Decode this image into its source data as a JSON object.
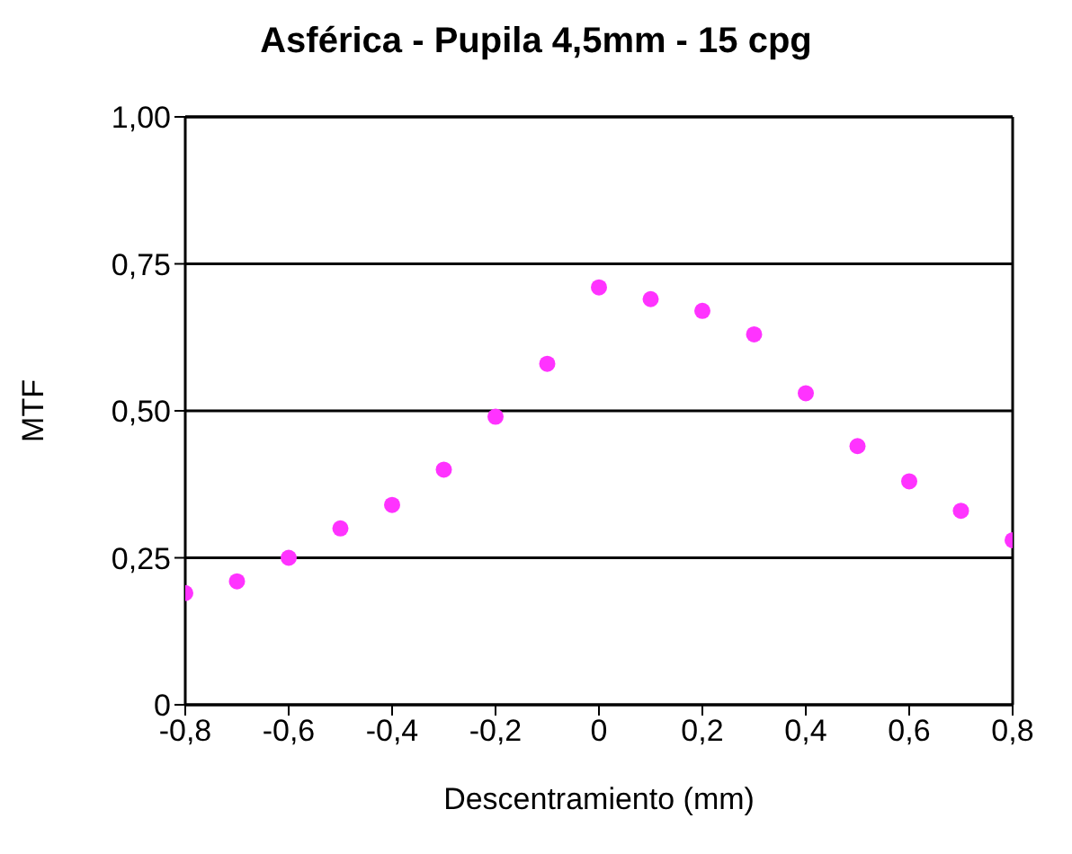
{
  "chart_data": {
    "type": "scatter",
    "title": "Asférica - Pupila 4,5mm - 15 cpg",
    "xlabel": "Descentramiento (mm)",
    "ylabel": "MTF",
    "x": [
      -0.8,
      -0.7,
      -0.6,
      -0.5,
      -0.4,
      -0.3,
      -0.2,
      -0.1,
      0,
      0.1,
      0.2,
      0.3,
      0.4,
      0.5,
      0.6,
      0.7,
      0.8
    ],
    "series": [
      {
        "color": "#ff33ff",
        "values": [
          0.19,
          0.21,
          0.25,
          0.3,
          0.34,
          0.4,
          0.49,
          0.58,
          0.71,
          0.69,
          0.67,
          0.63,
          0.53,
          0.44,
          0.38,
          0.33,
          0.28
        ]
      }
    ],
    "xlim": [
      -0.8,
      0.8
    ],
    "xticks": [
      {
        "value": -0.8,
        "label": "-0,8"
      },
      {
        "value": -0.6,
        "label": "-0,6"
      },
      {
        "value": -0.4,
        "label": "-0,4"
      },
      {
        "value": -0.2,
        "label": "-0,2"
      },
      {
        "value": 0,
        "label": "0"
      },
      {
        "value": 0.2,
        "label": "0,2"
      },
      {
        "value": 0.4,
        "label": "0,4"
      },
      {
        "value": 0.6,
        "label": "0,6"
      },
      {
        "value": 0.8,
        "label": "0,8"
      }
    ],
    "ylim": [
      0,
      1
    ],
    "yticks": [
      {
        "value": 0,
        "label": "0"
      },
      {
        "value": 0.25,
        "label": "0,25"
      },
      {
        "value": 0.5,
        "label": "0,50"
      },
      {
        "value": 0.75,
        "label": "0,75"
      },
      {
        "value": 1,
        "label": "1,00"
      }
    ],
    "grid": "y",
    "marker": "circle"
  }
}
